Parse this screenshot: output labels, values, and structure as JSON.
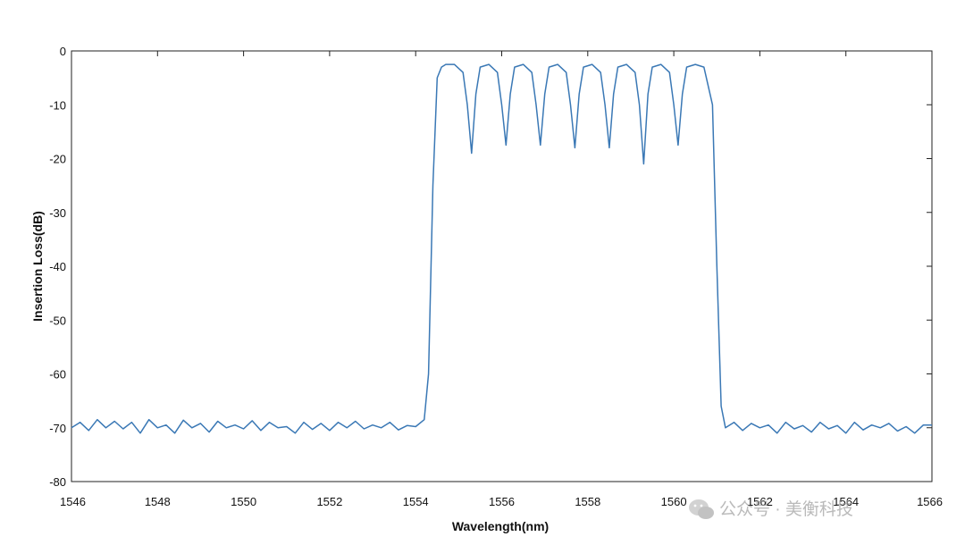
{
  "chart_data": {
    "type": "line",
    "title": "",
    "xlabel": "Wavelength(nm)",
    "ylabel": "Insertion Loss(dB)",
    "xlim": [
      1546,
      1566
    ],
    "ylim": [
      -80,
      0
    ],
    "x_ticks": [
      1546,
      1548,
      1550,
      1552,
      1554,
      1556,
      1558,
      1560,
      1562,
      1564,
      1566
    ],
    "x_tick_labels": [
      "1546",
      "1548",
      "1550",
      "1552",
      "1554",
      "1556",
      "1558",
      "1560",
      "1562",
      "1564",
      "1566"
    ],
    "y_ticks": [
      0,
      -10,
      -20,
      -30,
      -40,
      -50,
      -60,
      -70,
      -80
    ],
    "y_tick_labels": [
      "0",
      "-10",
      "-20",
      "-30",
      "-40",
      "-50",
      "-60",
      "-70",
      "-80"
    ],
    "grid": false,
    "line_color": "#3a78b5",
    "series": [
      {
        "name": "Insertion Loss",
        "x": [
          1546.0,
          1546.2,
          1546.4,
          1546.6,
          1546.8,
          1547.0,
          1547.2,
          1547.4,
          1547.6,
          1547.8,
          1548.0,
          1548.2,
          1548.4,
          1548.6,
          1548.8,
          1549.0,
          1549.2,
          1549.4,
          1549.6,
          1549.8,
          1550.0,
          1550.2,
          1550.4,
          1550.6,
          1550.8,
          1551.0,
          1551.2,
          1551.4,
          1551.6,
          1551.8,
          1552.0,
          1552.2,
          1552.4,
          1552.6,
          1552.8,
          1553.0,
          1553.2,
          1553.4,
          1553.6,
          1553.8,
          1554.0,
          1554.2,
          1554.3,
          1554.4,
          1554.5,
          1554.6,
          1554.7,
          1554.9,
          1555.1,
          1555.2,
          1555.3,
          1555.4,
          1555.5,
          1555.7,
          1555.9,
          1556.0,
          1556.1,
          1556.2,
          1556.3,
          1556.5,
          1556.7,
          1556.8,
          1556.9,
          1557.0,
          1557.1,
          1557.3,
          1557.5,
          1557.6,
          1557.7,
          1557.8,
          1557.9,
          1558.1,
          1558.3,
          1558.4,
          1558.5,
          1558.6,
          1558.7,
          1558.9,
          1559.1,
          1559.2,
          1559.3,
          1559.4,
          1559.5,
          1559.7,
          1559.9,
          1560.0,
          1560.1,
          1560.2,
          1560.3,
          1560.5,
          1560.7,
          1560.9,
          1561.0,
          1561.1,
          1561.2,
          1561.4,
          1561.6,
          1561.8,
          1562.0,
          1562.2,
          1562.4,
          1562.6,
          1562.8,
          1563.0,
          1563.2,
          1563.4,
          1563.6,
          1563.8,
          1564.0,
          1564.2,
          1564.4,
          1564.6,
          1564.8,
          1565.0,
          1565.2,
          1565.4,
          1565.6,
          1565.8,
          1566.0
        ],
        "y": [
          -70,
          -69,
          -70.5,
          -68.5,
          -70,
          -68.8,
          -70.2,
          -69,
          -71,
          -68.5,
          -70,
          -69.5,
          -71,
          -68.6,
          -70,
          -69.2,
          -70.8,
          -68.8,
          -70,
          -69.5,
          -70.2,
          -68.7,
          -70.5,
          -69,
          -70,
          -69.8,
          -71,
          -69,
          -70.3,
          -69.2,
          -70.5,
          -69,
          -70,
          -68.8,
          -70.2,
          -69.5,
          -70,
          -69,
          -70.4,
          -69.6,
          -69.8,
          -68.5,
          -60,
          -25,
          -5,
          -3,
          -2.5,
          -2.5,
          -4,
          -10,
          -19,
          -8,
          -3,
          -2.5,
          -4,
          -10,
          -17.5,
          -8,
          -3,
          -2.5,
          -4,
          -10,
          -17.5,
          -8,
          -3,
          -2.5,
          -4,
          -10,
          -18,
          -8,
          -3,
          -2.5,
          -4,
          -10,
          -18,
          -8,
          -3,
          -2.5,
          -4,
          -10,
          -21,
          -8,
          -3,
          -2.5,
          -4,
          -10,
          -17.5,
          -8,
          -3,
          -2.5,
          -3,
          -10,
          -40,
          -66,
          -70,
          -69,
          -70.5,
          -69.2,
          -70,
          -69.5,
          -71,
          -69,
          -70.2,
          -69.6,
          -70.8,
          -69,
          -70.2,
          -69.6,
          -71,
          -69,
          -70.4,
          -69.5,
          -70,
          -69.2,
          -70.6,
          -69.8,
          -71,
          -69.5,
          -69.5
        ]
      }
    ]
  },
  "watermark": {
    "text": "公众号 · 美衡科技",
    "icon": "wechat-icon"
  }
}
